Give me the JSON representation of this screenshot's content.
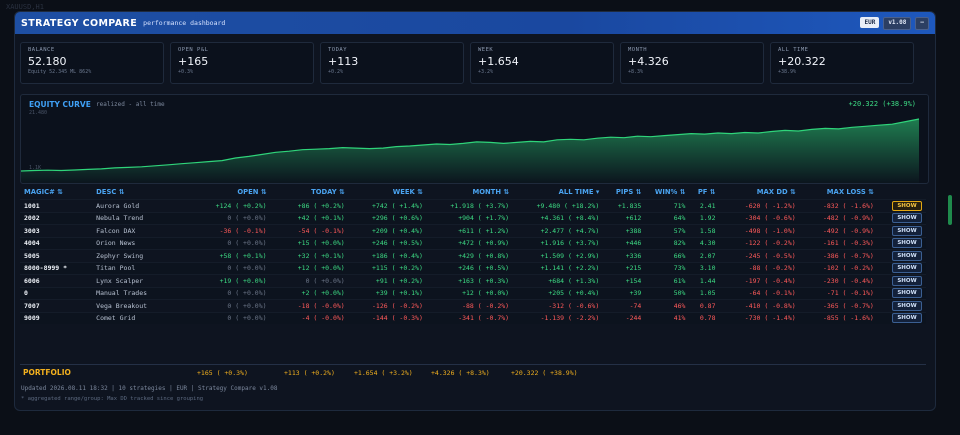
{
  "background_label": "XAUUSD,H1",
  "app": {
    "title": "STRATEGY COMPARE",
    "subtitle": "performance dashboard",
    "currency_chip": "EUR",
    "version_chip": "v1.08",
    "minimize": "–"
  },
  "cards": [
    {
      "label": "BALANCE",
      "value": "52.180",
      "sub": "Equity 52.345  ML 862%"
    },
    {
      "label": "OPEN P&L",
      "value": "+165",
      "sub": "+0.3%"
    },
    {
      "label": "TODAY",
      "value": "+113",
      "sub": "+0.2%"
    },
    {
      "label": "WEEK",
      "value": "+1.654",
      "sub": "+3.2%"
    },
    {
      "label": "MONTH",
      "value": "+4.326",
      "sub": "+8.3%"
    },
    {
      "label": "ALL TIME",
      "value": "+20.322",
      "sub": "+38.9%"
    }
  ],
  "equity_curve": {
    "title": "EQUITY CURVE",
    "subtitle": "realized - all time",
    "total": "+20.322 (+38.9%)",
    "max_label": "21.480",
    "min_label": "1.1K",
    "points": [
      0.0,
      0.01,
      0.015,
      0.01,
      0.02,
      0.03,
      0.04,
      0.06,
      0.07,
      0.08,
      0.1,
      0.12,
      0.14,
      0.16,
      0.18,
      0.2,
      0.25,
      0.28,
      0.32,
      0.36,
      0.38,
      0.41,
      0.42,
      0.43,
      0.45,
      0.44,
      0.43,
      0.44,
      0.47,
      0.48,
      0.5,
      0.52,
      0.51,
      0.53,
      0.56,
      0.55,
      0.53,
      0.55,
      0.57,
      0.56,
      0.6,
      0.61,
      0.6,
      0.63,
      0.65,
      0.64,
      0.67,
      0.66,
      0.68,
      0.7,
      0.72,
      0.71,
      0.73,
      0.72,
      0.74,
      0.73,
      0.76,
      0.78,
      0.77,
      0.8,
      0.82,
      0.81,
      0.84,
      0.86,
      0.88,
      0.9,
      0.95,
      1.0
    ],
    "color": "#2fd47a"
  },
  "table": {
    "headers": {
      "magic": "MAGIC# ⇅",
      "desc": "DESC ⇅",
      "open": "OPEN ⇅",
      "today": "TODAY ⇅",
      "week": "WEEK ⇅",
      "month": "MONTH ⇅",
      "alltime": "ALL TIME ▾",
      "pips": "PIPS ⇅",
      "win": "WIN% ⇅",
      "pf": "PF ⇅",
      "maxdd": "MAX DD ⇅",
      "maxloss": "MAX LOSS ⇅"
    },
    "rows": [
      {
        "magic": "1001",
        "desc": "Aurora Gold",
        "open": "+124 (  +0.2%)",
        "today": "+86 (  +0.2%)",
        "week": "+742 (  +1.4%)",
        "month": "+1.918 (  +3.7%)",
        "alltime": "+9.480 ( +18.2%)",
        "pips": "+1.835",
        "win": "71%",
        "pf": "2.41",
        "maxdd": "-620 (  -1.2%)",
        "maxloss": "-832 (  -1.6%)",
        "btn": "SHOW",
        "active": true
      },
      {
        "magic": "2002",
        "desc": "Nebula Trend",
        "open": "0 (  +0.0%)",
        "today": "+42 (  +0.1%)",
        "week": "+296 (  +0.6%)",
        "month": "+904 (  +1.7%)",
        "alltime": "+4.361 (  +8.4%)",
        "pips": "+612",
        "win": "64%",
        "pf": "1.92",
        "maxdd": "-304 (  -0.6%)",
        "maxloss": "-482 (  -0.9%)",
        "btn": "SHOW",
        "active": false
      },
      {
        "magic": "3003",
        "desc": "Falcon DAX",
        "open": "-36 (  -0.1%)",
        "today": "-54 (  -0.1%)",
        "week": "+209 (  +0.4%)",
        "month": "+611 (  +1.2%)",
        "alltime": "+2.477 (  +4.7%)",
        "pips": "+388",
        "win": "57%",
        "pf": "1.58",
        "maxdd": "-498 (  -1.0%)",
        "maxloss": "-492 (  -0.9%)",
        "btn": "SHOW",
        "active": false
      },
      {
        "magic": "4004",
        "desc": "Orion News",
        "open": "0 (  +0.0%)",
        "today": "+15 (  +0.0%)",
        "week": "+246 (  +0.5%)",
        "month": "+472 (  +0.9%)",
        "alltime": "+1.916 (  +3.7%)",
        "pips": "+446",
        "win": "82%",
        "pf": "4.30",
        "maxdd": "-122 (  -0.2%)",
        "maxloss": "-161 (  -0.3%)",
        "btn": "SHOW",
        "active": false
      },
      {
        "magic": "5005",
        "desc": "Zephyr Swing",
        "open": "+58 (  +0.1%)",
        "today": "+32 (  +0.1%)",
        "week": "+186 (  +0.4%)",
        "month": "+429 (  +0.8%)",
        "alltime": "+1.509 (  +2.9%)",
        "pips": "+336",
        "win": "66%",
        "pf": "2.07",
        "maxdd": "-245 (  -0.5%)",
        "maxloss": "-386 (  -0.7%)",
        "btn": "SHOW",
        "active": false
      },
      {
        "magic": "8000-8999 *",
        "desc": "Titan Pool",
        "open": "0 (  +0.0%)",
        "today": "+12 (  +0.0%)",
        "week": "+115 (  +0.2%)",
        "month": "+246 (  +0.5%)",
        "alltime": "+1.141 (  +2.2%)",
        "pips": "+215",
        "win": "73%",
        "pf": "3.10",
        "maxdd": "-88 (  -0.2%)",
        "maxloss": "-102 (  -0.2%)",
        "btn": "SHOW",
        "active": false
      },
      {
        "magic": "6006",
        "desc": "Lynx Scalper",
        "open": "+19 (  +0.0%)",
        "today": "0 (  +0.0%)",
        "week": "+91 (  +0.2%)",
        "month": "+163 (  +0.3%)",
        "alltime": "+684 (  +1.3%)",
        "pips": "+154",
        "win": "61%",
        "pf": "1.44",
        "maxdd": "-197 (  -0.4%)",
        "maxloss": "-230 (  -0.4%)",
        "btn": "SHOW",
        "active": false
      },
      {
        "magic": "0",
        "desc": "Manual Trades",
        "open": "0 (  +0.0%)",
        "today": "+2 (  +0.0%)",
        "week": "+39 (  +0.1%)",
        "month": "+12 (  +0.0%)",
        "alltime": "+205 (  +0.4%)",
        "pips": "+39",
        "win": "50%",
        "pf": "1.05",
        "maxdd": "-64 (  -0.1%)",
        "maxloss": "-71 (  -0.1%)",
        "btn": "SHOW",
        "active": false
      },
      {
        "magic": "7007",
        "desc": "Vega Breakout",
        "open": "0 (  +0.0%)",
        "today": "-18 (  -0.0%)",
        "week": "-126 (  -0.2%)",
        "month": "-88 (  -0.2%)",
        "alltime": "-312 (  -0.6%)",
        "pips": "-74",
        "win": "46%",
        "pf": "0.87",
        "maxdd": "-410 (  -0.8%)",
        "maxloss": "-365 (  -0.7%)",
        "btn": "SHOW",
        "active": false
      },
      {
        "magic": "9009",
        "desc": "Comet Grid",
        "open": "0 (  +0.0%)",
        "today": "-4 (  -0.0%)",
        "week": "-144 (  -0.3%)",
        "month": "-341 (  -0.7%)",
        "alltime": "-1.139 (  -2.2%)",
        "pips": "-244",
        "win": "41%",
        "pf": "0.78",
        "maxdd": "-730 (  -1.4%)",
        "maxloss": "-855 (  -1.6%)",
        "btn": "SHOW",
        "active": false
      }
    ]
  },
  "portfolio": {
    "label": "PORTFOLIO",
    "open": "+165 (  +0.3%)",
    "today": "+113 (  +0.2%)",
    "week": "+1.654 (  +3.2%)",
    "month": "+4.326 (  +8.3%)",
    "alltime": "+20.322 ( +38.9%)"
  },
  "footer": "Updated 2026.08.11 18:32  |  10 strategies  |  EUR  |  Strategy Compare v1.08",
  "footnote": "* aggregated range/group: Max DD tracked since grouping"
}
